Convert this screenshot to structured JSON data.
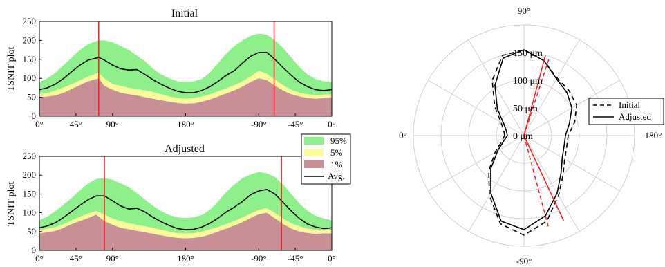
{
  "colors": {
    "band95": "#8ef08a",
    "band5": "#fafa9a",
    "band1": "#c98f96",
    "avg": "#000000",
    "marker": "#ff1a1a",
    "grid": "#d0d0d0"
  },
  "chart_data": [
    {
      "type": "area",
      "title": "Initial",
      "ylabel": "TSNIT plot",
      "xlabel": "",
      "x_tick_labels": [
        "0°",
        "45°",
        "90°",
        "180°",
        "-90°",
        "-45°",
        "0°"
      ],
      "x_tick_positions_deg": [
        0,
        45,
        90,
        180,
        270,
        315,
        360
      ],
      "ylim": [
        0,
        250
      ],
      "y_ticks": [
        "0",
        "50",
        "100",
        "150",
        "200",
        "250"
      ],
      "xlim": [
        0,
        360
      ],
      "marker_lines_deg": [
        73,
        289
      ],
      "x": [
        0,
        10,
        20,
        30,
        40,
        50,
        60,
        73,
        80,
        90,
        100,
        110,
        120,
        130,
        140,
        150,
        160,
        170,
        180,
        190,
        200,
        210,
        220,
        230,
        240,
        250,
        260,
        270,
        280,
        290,
        300,
        310,
        320,
        330,
        340,
        350,
        360
      ],
      "series": [
        {
          "name": "95%",
          "values": [
            90,
            100,
            115,
            135,
            155,
            175,
            190,
            200,
            200,
            195,
            185,
            175,
            160,
            145,
            125,
            110,
            100,
            92,
            90,
            92,
            98,
            115,
            140,
            165,
            185,
            200,
            212,
            218,
            215,
            200,
            180,
            155,
            130,
            110,
            98,
            92,
            90
          ]
        },
        {
          "name": "5%",
          "values": [
            58,
            62,
            68,
            76,
            85,
            95,
            105,
            115,
            100,
            85,
            80,
            75,
            72,
            68,
            64,
            58,
            52,
            48,
            46,
            48,
            52,
            58,
            66,
            74,
            82,
            92,
            105,
            120,
            112,
            96,
            82,
            70,
            62,
            58,
            56,
            57,
            58
          ]
        },
        {
          "name": "1%",
          "values": [
            50,
            52,
            55,
            62,
            72,
            82,
            92,
            100,
            80,
            70,
            62,
            58,
            55,
            50,
            46,
            42,
            38,
            35,
            33,
            34,
            38,
            44,
            52,
            60,
            68,
            78,
            90,
            100,
            95,
            80,
            68,
            58,
            52,
            48,
            46,
            48,
            50
          ]
        },
        {
          "name": "Avg.",
          "values": [
            70,
            75,
            85,
            100,
            118,
            135,
            148,
            155,
            148,
            135,
            125,
            122,
            123,
            110,
            96,
            84,
            74,
            66,
            62,
            62,
            68,
            78,
            92,
            108,
            120,
            140,
            158,
            168,
            168,
            150,
            128,
            108,
            90,
            78,
            70,
            68,
            70
          ]
        }
      ]
    },
    {
      "type": "area",
      "title": "Adjusted",
      "ylabel": "TSNIT plot",
      "xlabel": "",
      "x_tick_labels": [
        "0°",
        "45°",
        "90°",
        "180°",
        "-90°",
        "-45°",
        "0°"
      ],
      "x_tick_positions_deg": [
        0,
        45,
        90,
        180,
        270,
        315,
        360
      ],
      "ylim": [
        0,
        250
      ],
      "y_ticks": [
        "0",
        "50",
        "100",
        "150",
        "200",
        "250"
      ],
      "xlim": [
        0,
        360
      ],
      "marker_lines_deg": [
        80,
        298
      ],
      "x": [
        0,
        10,
        20,
        30,
        40,
        50,
        60,
        70,
        80,
        90,
        100,
        110,
        120,
        130,
        140,
        150,
        160,
        170,
        180,
        190,
        200,
        210,
        220,
        230,
        240,
        250,
        260,
        270,
        280,
        290,
        300,
        310,
        320,
        330,
        340,
        350,
        360
      ],
      "series": [
        {
          "name": "95%",
          "values": [
            80,
            90,
            105,
            122,
            140,
            160,
            178,
            190,
            192,
            188,
            178,
            168,
            152,
            135,
            118,
            104,
            94,
            88,
            86,
            88,
            94,
            108,
            130,
            155,
            175,
            192,
            202,
            208,
            205,
            195,
            175,
            150,
            125,
            105,
            92,
            85,
            80
          ]
        },
        {
          "name": "5%",
          "values": [
            55,
            58,
            62,
            70,
            80,
            90,
            98,
            105,
            95,
            85,
            78,
            72,
            68,
            64,
            60,
            55,
            50,
            46,
            45,
            46,
            50,
            56,
            62,
            70,
            78,
            88,
            98,
            108,
            112,
            100,
            85,
            72,
            64,
            58,
            55,
            55,
            55
          ]
        },
        {
          "name": "1%",
          "values": [
            45,
            48,
            52,
            60,
            70,
            78,
            86,
            95,
            78,
            68,
            60,
            56,
            52,
            48,
            44,
            40,
            36,
            33,
            32,
            33,
            36,
            42,
            50,
            58,
            66,
            75,
            86,
            96,
            100,
            85,
            70,
            58,
            50,
            46,
            44,
            45,
            45
          ]
        },
        {
          "name": "Avg.",
          "values": [
            60,
            65,
            74,
            88,
            104,
            120,
            135,
            145,
            145,
            132,
            118,
            110,
            112,
            102,
            88,
            76,
            66,
            58,
            55,
            56,
            62,
            72,
            86,
            102,
            115,
            130,
            148,
            158,
            162,
            150,
            128,
            105,
            85,
            70,
            62,
            58,
            60
          ]
        }
      ]
    },
    {
      "type": "polar",
      "title": "",
      "angle_labels": {
        "top": "90°",
        "bottom": "-90°",
        "left": "0°",
        "right": "180°"
      },
      "radial_labels": [
        "0 μm",
        "50 μm",
        "100 μm",
        "150 μm"
      ],
      "radial_values": [
        0,
        50,
        100,
        150
      ],
      "rmax": 200,
      "legend": [
        "Initial",
        "Adjusted"
      ],
      "angle_deg": [
        0,
        15,
        30,
        45,
        60,
        75,
        90,
        105,
        120,
        135,
        150,
        165,
        180,
        195,
        210,
        225,
        240,
        255,
        270,
        285,
        300,
        315,
        330,
        345,
        360
      ],
      "series": [
        {
          "name": "Initial",
          "style": "dashed",
          "values": [
            35,
            38,
            48,
            75,
            115,
            150,
            155,
            140,
            120,
            115,
            110,
            95,
            80,
            80,
            85,
            100,
            125,
            160,
            180,
            165,
            125,
            90,
            60,
            42,
            35
          ]
        },
        {
          "name": "Adjusted",
          "style": "solid",
          "values": [
            30,
            33,
            42,
            68,
            105,
            145,
            155,
            140,
            118,
            110,
            100,
            85,
            75,
            75,
            80,
            95,
            120,
            150,
            170,
            160,
            120,
            85,
            55,
            38,
            30
          ]
        }
      ],
      "marker_lines": [
        {
          "angle_deg": 105,
          "r": 150,
          "style": "solid"
        },
        {
          "angle_deg": 108,
          "r": 145,
          "style": "dashed"
        },
        {
          "angle_deg": 245,
          "r": 170,
          "style": "solid"
        },
        {
          "angle_deg": 255,
          "r": 175,
          "style": "dashed"
        }
      ]
    }
  ],
  "legend_tsnit": [
    "95%",
    "5%",
    "1%",
    "Avg."
  ]
}
